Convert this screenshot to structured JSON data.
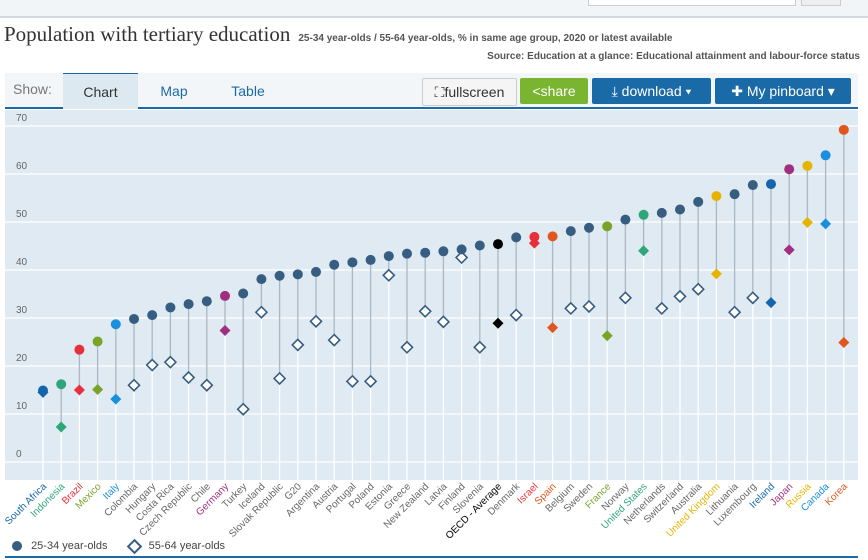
{
  "search": {
    "placeholder": ""
  },
  "header": {
    "title": "Population with tertiary education",
    "subtitle": "25-34 year-olds / 55-64 year-olds, % in same age group, 2020 or latest available",
    "source": "Source: Education at a glance: Educational attainment and labour-force status"
  },
  "toolbar": {
    "show_label": "Show:",
    "tabs": [
      "Chart",
      "Map",
      "Table"
    ],
    "active_tab": "Chart",
    "fullscreen": "fullscreen",
    "share": "share",
    "download": "download ▾",
    "pinboard": "My pinboard ▾"
  },
  "chart_data": {
    "type": "dot-plot",
    "ylim": [
      0,
      70
    ],
    "yticks": [
      0,
      10,
      20,
      30,
      40,
      50,
      60,
      70
    ],
    "grid": true,
    "legend_placement": "bottom-left",
    "default_color": "#375d81",
    "categories": [
      "South Africa",
      "Indonesia",
      "Brazil",
      "Mexico",
      "Italy",
      "Colombia",
      "Hungary",
      "Costa Rica",
      "Czech Republic",
      "Chile",
      "Germany",
      "Turkey",
      "Iceland",
      "Slovak Republic",
      "G20",
      "Argentina",
      "Austria",
      "Portugal",
      "Poland",
      "Estonia",
      "Greece",
      "New Zealand",
      "Latvia",
      "Finland",
      "Slovenia",
      "OECD - Average",
      "Denmark",
      "Israel",
      "Spain",
      "Belgium",
      "Sweden",
      "France",
      "Norway",
      "United States",
      "Netherlands",
      "Switzerland",
      "Australia",
      "United Kingdom",
      "Lithuania",
      "Luxembourg",
      "Ireland",
      "Japan",
      "Russia",
      "Canada",
      "Korea"
    ],
    "highlight_colors": {
      "South Africa": "#1565ad",
      "Indonesia": "#2fa67a",
      "Brazil": "#e8303a",
      "Mexico": "#7aa32a",
      "Italy": "#1a8fde",
      "Germany": "#a0307f",
      "OECD - Average": "#000000",
      "Israel": "#e8303a",
      "Spain": "#e0561e",
      "France": "#7aa32a",
      "United States": "#2fa67a",
      "United Kingdom": "#e6b400",
      "Ireland": "#1565ad",
      "Japan": "#a0307f",
      "Russia": "#e6b400",
      "Canada": "#1a8fde",
      "Korea": "#e0561e"
    },
    "series": [
      {
        "name": "25-34 year-olds",
        "marker": "circle",
        "values": [
          14.9,
          16.2,
          23.4,
          25.1,
          28.7,
          29.8,
          30.6,
          32.2,
          32.9,
          33.5,
          34.6,
          35.1,
          38.1,
          38.8,
          39.1,
          39.6,
          41.1,
          41.6,
          42.1,
          42.9,
          43.4,
          43.6,
          43.9,
          44.3,
          45.1,
          45.4,
          46.8,
          46.9,
          47.0,
          48.1,
          48.8,
          49.1,
          50.5,
          51.5,
          51.9,
          52.6,
          54.2,
          55.4,
          55.8,
          57.7,
          57.9,
          61.0,
          61.7,
          63.9,
          69.2
        ]
      },
      {
        "name": "55-64 year-olds",
        "marker": "diamond",
        "values": [
          14.5,
          7.3,
          15.0,
          15.1,
          13.1,
          16.0,
          20.2,
          20.8,
          17.6,
          16.0,
          27.4,
          11.0,
          31.2,
          17.4,
          24.4,
          29.3,
          25.4,
          16.8,
          16.8,
          38.9,
          23.9,
          31.4,
          29.2,
          42.6,
          23.9,
          28.9,
          30.6,
          45.6,
          28.0,
          32.0,
          32.4,
          26.3,
          34.2,
          44.0,
          32.0,
          34.5,
          36.0,
          39.2,
          31.2,
          34.2,
          33.2,
          44.2,
          49.9,
          49.6,
          24.9
        ]
      }
    ]
  },
  "legend": {
    "items": [
      "25-34 year-olds",
      "55-64 year-olds"
    ]
  }
}
